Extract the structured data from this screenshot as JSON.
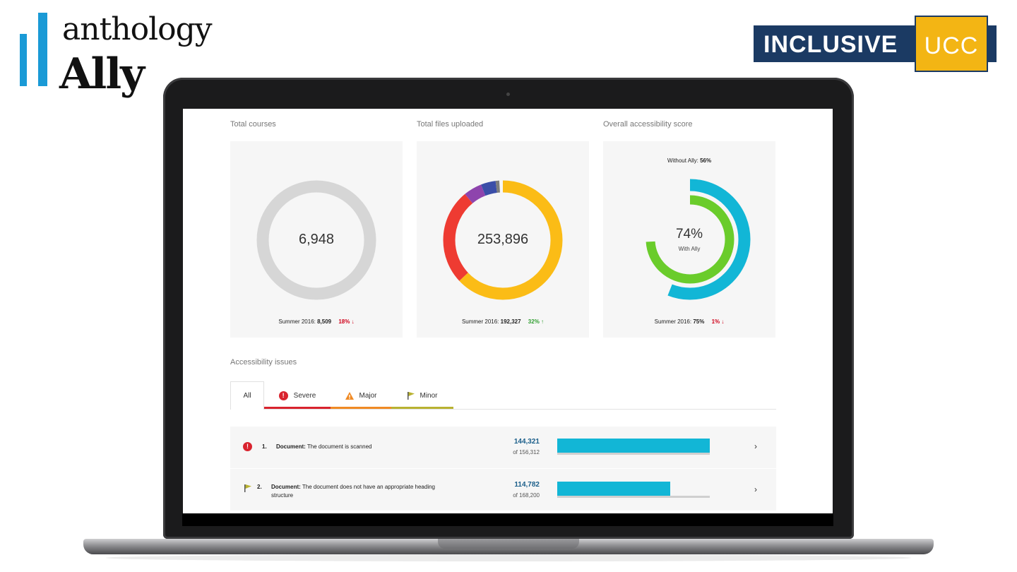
{
  "logo": {
    "line1": "anthology",
    "line2": "Ally"
  },
  "badge": {
    "left": "INCLUSIVE",
    "right": "UCC"
  },
  "colors": {
    "cyan": "#12b6d6",
    "green": "#6acc2b",
    "navy": "#1b3a63",
    "gold": "#f3b514"
  },
  "dashboard": {
    "cards": [
      {
        "title": "Total courses",
        "value": "6,948",
        "summer_label": "Summer 2016:",
        "summer_value": "8,509",
        "change": "18%",
        "change_dir": "down",
        "arrow": "↓"
      },
      {
        "title": "Total files uploaded",
        "value": "253,896",
        "summer_label": "Summer 2016:",
        "summer_value": "192,327",
        "change": "32%",
        "change_dir": "up",
        "arrow": "↑"
      },
      {
        "title": "Overall accessibility score",
        "value": "74%",
        "value_caption": "With Ally",
        "without_label": "Without Ally:",
        "without_value": "56%",
        "summer_label": "Summer 2016:",
        "summer_value": "75%",
        "change": "1%",
        "change_dir": "down",
        "arrow": "↓"
      }
    ],
    "files_breakdown": [
      {
        "color": "#fbbc16",
        "fraction": 0.63
      },
      {
        "color": "#ee3b32",
        "fraction": 0.26
      },
      {
        "color": "#8e44ad",
        "fraction": 0.05
      },
      {
        "color": "#3b4ea8",
        "fraction": 0.04
      },
      {
        "color": "#7d7d7d",
        "fraction": 0.01
      }
    ],
    "score": {
      "with_ally": 0.74,
      "without_ally": 0.56
    },
    "issues_title": "Accessibility issues",
    "tabs": [
      {
        "label": "All",
        "icon": "none",
        "color": "#ffffff"
      },
      {
        "label": "Severe",
        "icon": "severe-icon",
        "color": "#d9232e"
      },
      {
        "label": "Major",
        "icon": "warning-triangle-icon",
        "color": "#f08a24"
      },
      {
        "label": "Minor",
        "icon": "flag-icon",
        "color": "#b9b230"
      }
    ],
    "issues": [
      {
        "index": "1.",
        "icon": "severe-icon",
        "category": "Document:",
        "description": "The document is scanned",
        "count": "144,321",
        "of": "of 156,312",
        "ratio": 0.923
      },
      {
        "index": "2.",
        "icon": "flag-icon",
        "category": "Document:",
        "description": "The document does not have an appropriate heading structure",
        "count": "114,782",
        "of": "of 168,200",
        "ratio": 0.682
      }
    ]
  }
}
